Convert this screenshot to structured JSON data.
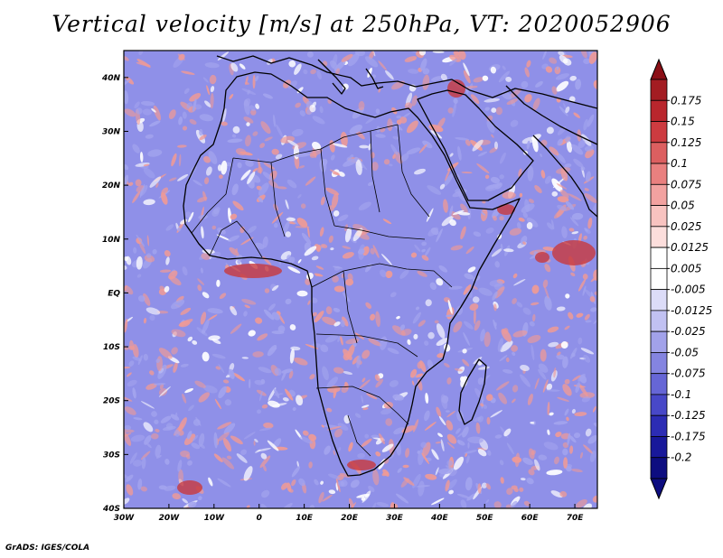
{
  "title": "Vertical velocity [m/s] at 250hPa, VT: 2020052906",
  "footer": "GrADS: IGES/COLA",
  "map": {
    "lon_range": [
      -30,
      75
    ],
    "lat_range": [
      -40,
      45
    ],
    "lon_ticks": [
      "30W",
      "20W",
      "10W",
      "0",
      "10E",
      "20E",
      "30E",
      "40E",
      "50E",
      "60E",
      "70E"
    ],
    "lat_ticks": [
      "40N",
      "30N",
      "20N",
      "10N",
      "EQ",
      "10S",
      "20S",
      "30S",
      "40S"
    ]
  },
  "colorbar": {
    "labels": [
      "0.175",
      "0.15",
      "0.125",
      "0.1",
      "0.075",
      "0.05",
      "0.025",
      "0.0125",
      "0.005",
      "-0.005",
      "-0.0125",
      "-0.025",
      "-0.05",
      "-0.075",
      "-0.1",
      "-0.125",
      "-0.175",
      "-0.2"
    ],
    "colors": [
      "#a31c22",
      "#b9262d",
      "#cd3b40",
      "#dc5f60",
      "#e9807f",
      "#f2a2a0",
      "#f8c3c0",
      "#fcdedc",
      "#ffffff",
      "#ffffff",
      "#dcdcf8",
      "#c1c1f2",
      "#a2a2ea",
      "#8484e0",
      "#6666d6",
      "#4848c8",
      "#2c2cb4",
      "#18189a",
      "#0d0d80"
    ],
    "end_top_color": "#8b0f16",
    "end_bottom_color": "#0d0d80"
  },
  "field_colors": {
    "blue": "#8f90e8",
    "red": "#ee9a97",
    "strong_red": "#c8383c",
    "white": "#ffffff"
  }
}
